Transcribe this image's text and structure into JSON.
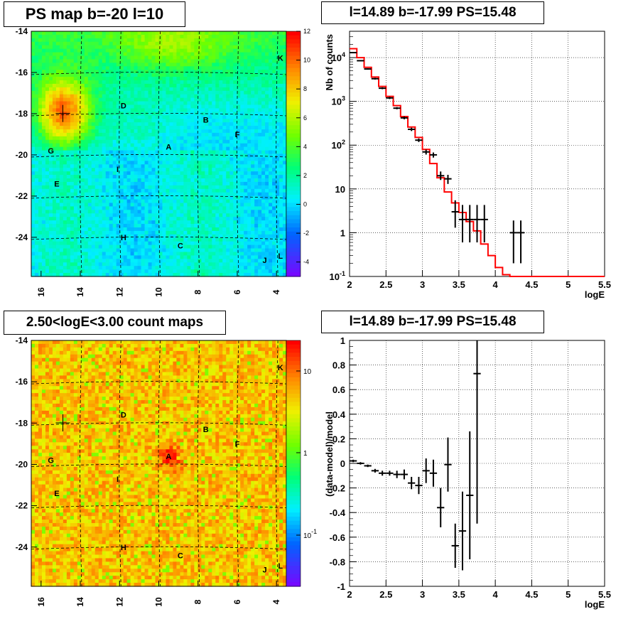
{
  "panels": {
    "tl_title": "PS map b=-20 l=10",
    "tr_title": "l=14.89 b=-17.99 PS=15.48",
    "bl_title": "2.50<logE<3.00 count maps",
    "br_title": "l=14.89 b=-17.99 PS=15.48"
  },
  "colors": {
    "hist_line": "#ff0000",
    "points": "#000000",
    "grid": "#000000"
  },
  "chart_data": [
    {
      "type": "heatmap",
      "title": "PS map b=-20 l=10",
      "x_ticks": [
        "16",
        "14",
        "12",
        "10",
        "8",
        "6",
        "4"
      ],
      "y_ticks": [
        "-14",
        "-16",
        "-18",
        "-20",
        "-22",
        "-24"
      ],
      "xlim": [
        16.5,
        3.5
      ],
      "ylim": [
        -25.9,
        -14
      ],
      "colorbar_ticks": [
        "12",
        "10",
        "8",
        "6",
        "4",
        "2",
        "0",
        "-2",
        "-4"
      ],
      "colorbar_range": [
        -5,
        12
      ],
      "sources": [
        {
          "label": "A",
          "l": 9.5,
          "b": -19.6
        },
        {
          "label": "B",
          "l": 7.6,
          "b": -18.3
        },
        {
          "label": "C",
          "l": 8.9,
          "b": -24.4
        },
        {
          "label": "D",
          "l": 11.8,
          "b": -17.6
        },
        {
          "label": "E",
          "l": 15.2,
          "b": -21.4
        },
        {
          "label": "F",
          "l": 6.0,
          "b": -19.0
        },
        {
          "label": "G",
          "l": 15.5,
          "b": -19.8
        },
        {
          "label": "H",
          "l": 11.8,
          "b": -24.0
        },
        {
          "label": "I",
          "l": 12.1,
          "b": -20.7
        },
        {
          "label": "J",
          "l": 4.6,
          "b": -25.1
        },
        {
          "label": "K",
          "l": 3.8,
          "b": -15.3
        },
        {
          "label": "L",
          "l": 3.8,
          "b": -24.9
        }
      ]
    },
    {
      "type": "line",
      "title": "l=14.89 b=-17.99 PS=15.48",
      "xlabel": "logE",
      "ylabel": "Nb of counts",
      "ylog": true,
      "xlim": [
        2,
        5.5
      ],
      "ylim": [
        0.1,
        40000
      ],
      "x_ticks": [
        "2",
        "2.5",
        "3",
        "3.5",
        "4",
        "4.5",
        "5",
        "5.5"
      ],
      "y_ticks": [
        {
          "label": "10",
          "sup": "-1",
          "value": 0.1
        },
        {
          "label": "1",
          "sup": "",
          "value": 1
        },
        {
          "label": "10",
          "sup": "",
          "value": 10
        },
        {
          "label": "10",
          "sup": "2",
          "value": 100
        },
        {
          "label": "10",
          "sup": "3",
          "value": 1000
        },
        {
          "label": "10",
          "sup": "4",
          "value": 10000
        }
      ],
      "model_bin_width": 0.1,
      "model_x": [
        2.0,
        2.1,
        2.2,
        2.3,
        2.4,
        2.5,
        2.6,
        2.7,
        2.8,
        2.9,
        3.0,
        3.1,
        3.2,
        3.3,
        3.4,
        3.5,
        3.6,
        3.7,
        3.8,
        3.9,
        4.0,
        4.1,
        4.2,
        4.3,
        4.4,
        4.5,
        4.6,
        4.7,
        4.8,
        4.9,
        5.0,
        5.1,
        5.2,
        5.3,
        5.4
      ],
      "model_values": [
        16000,
        10000,
        6000,
        3600,
        2200,
        1300,
        800,
        450,
        260,
        150,
        80,
        38,
        18,
        8.5,
        4.8,
        2.9,
        1.8,
        1.1,
        0.55,
        0.3,
        0.16,
        0.11,
        0.1,
        0.1,
        0.1,
        0.1,
        0.1,
        0.1,
        0.1,
        0.1,
        0.1,
        0.1,
        0.1,
        0.1,
        0.1
      ],
      "data_x": [
        2.05,
        2.15,
        2.25,
        2.35,
        2.45,
        2.55,
        2.65,
        2.75,
        2.85,
        2.95,
        3.05,
        3.15,
        3.25,
        3.35,
        3.45,
        3.55,
        3.65,
        3.75,
        3.85,
        4.25,
        4.35
      ],
      "data_y": [
        13000,
        8500,
        5500,
        3300,
        2000,
        1200,
        700,
        420,
        230,
        130,
        70,
        60,
        20,
        17,
        3,
        2,
        2,
        2,
        2,
        1,
        1
      ],
      "data_err_lo": [
        12800,
        8300,
        5300,
        3150,
        1900,
        1130,
        660,
        390,
        210,
        118,
        61,
        52,
        16,
        13,
        1.3,
        0.6,
        0.6,
        0.6,
        0.6,
        0.2,
        0.2
      ],
      "data_err_hi": [
        13200,
        8700,
        5700,
        3450,
        2100,
        1270,
        740,
        450,
        250,
        142,
        79,
        68,
        25,
        21,
        5.5,
        4.3,
        4.3,
        4.3,
        4.3,
        1.9,
        1.9
      ]
    },
    {
      "type": "heatmap",
      "title": "2.50<logE<3.00 count maps",
      "x_ticks": [
        "16",
        "14",
        "12",
        "10",
        "8",
        "6",
        "4"
      ],
      "y_ticks": [
        "-14",
        "-16",
        "-18",
        "-20",
        "-22",
        "-24"
      ],
      "xlim": [
        16.5,
        3.5
      ],
      "ylim": [
        -25.9,
        -14
      ],
      "colorbar_ticks": [
        {
          "label": "10",
          "sup": ""
        },
        {
          "label": "1",
          "sup": ""
        },
        {
          "label": "10",
          "sup": "-1"
        }
      ],
      "colorbar_scale": "log",
      "sources": [
        {
          "label": "A",
          "l": 9.5,
          "b": -19.6
        },
        {
          "label": "B",
          "l": 7.6,
          "b": -18.3
        },
        {
          "label": "C",
          "l": 8.9,
          "b": -24.4
        },
        {
          "label": "D",
          "l": 11.8,
          "b": -17.6
        },
        {
          "label": "E",
          "l": 15.2,
          "b": -21.4
        },
        {
          "label": "F",
          "l": 6.0,
          "b": -19.0
        },
        {
          "label": "G",
          "l": 15.5,
          "b": -19.8
        },
        {
          "label": "H",
          "l": 11.8,
          "b": -24.0
        },
        {
          "label": "I",
          "l": 12.1,
          "b": -20.7
        },
        {
          "label": "J",
          "l": 4.6,
          "b": -25.1
        },
        {
          "label": "K",
          "l": 3.8,
          "b": -15.3
        },
        {
          "label": "L",
          "l": 3.8,
          "b": -24.9
        }
      ]
    },
    {
      "type": "scatter",
      "title": "l=14.89 b=-17.99 PS=15.48",
      "xlabel": "logE",
      "ylabel": "(data-model)/model",
      "xlim": [
        2,
        5.5
      ],
      "ylim": [
        -1,
        1
      ],
      "x_ticks": [
        "2",
        "2.5",
        "3",
        "3.5",
        "4",
        "4.5",
        "5",
        "5.5"
      ],
      "y_ticks": [
        "-1",
        "-0.8",
        "-0.6",
        "-0.4",
        "-0.2",
        "0",
        "0.2",
        "0.4",
        "0.6",
        "0.8",
        "1"
      ],
      "x": [
        2.05,
        2.15,
        2.25,
        2.35,
        2.45,
        2.55,
        2.65,
        2.75,
        2.85,
        2.95,
        3.05,
        3.15,
        3.25,
        3.35,
        3.45,
        3.55,
        3.65,
        3.75
      ],
      "y": [
        0.02,
        0.0,
        -0.02,
        -0.06,
        -0.08,
        -0.08,
        -0.09,
        -0.09,
        -0.16,
        -0.18,
        -0.06,
        -0.08,
        -0.36,
        -0.01,
        -0.67,
        -0.55,
        -0.26,
        0.73
      ],
      "err": [
        0.01,
        0.01,
        0.01,
        0.015,
        0.02,
        0.02,
        0.03,
        0.04,
        0.05,
        0.07,
        0.1,
        0.11,
        0.16,
        0.22,
        0.18,
        0.32,
        0.52,
        1.22
      ]
    }
  ]
}
